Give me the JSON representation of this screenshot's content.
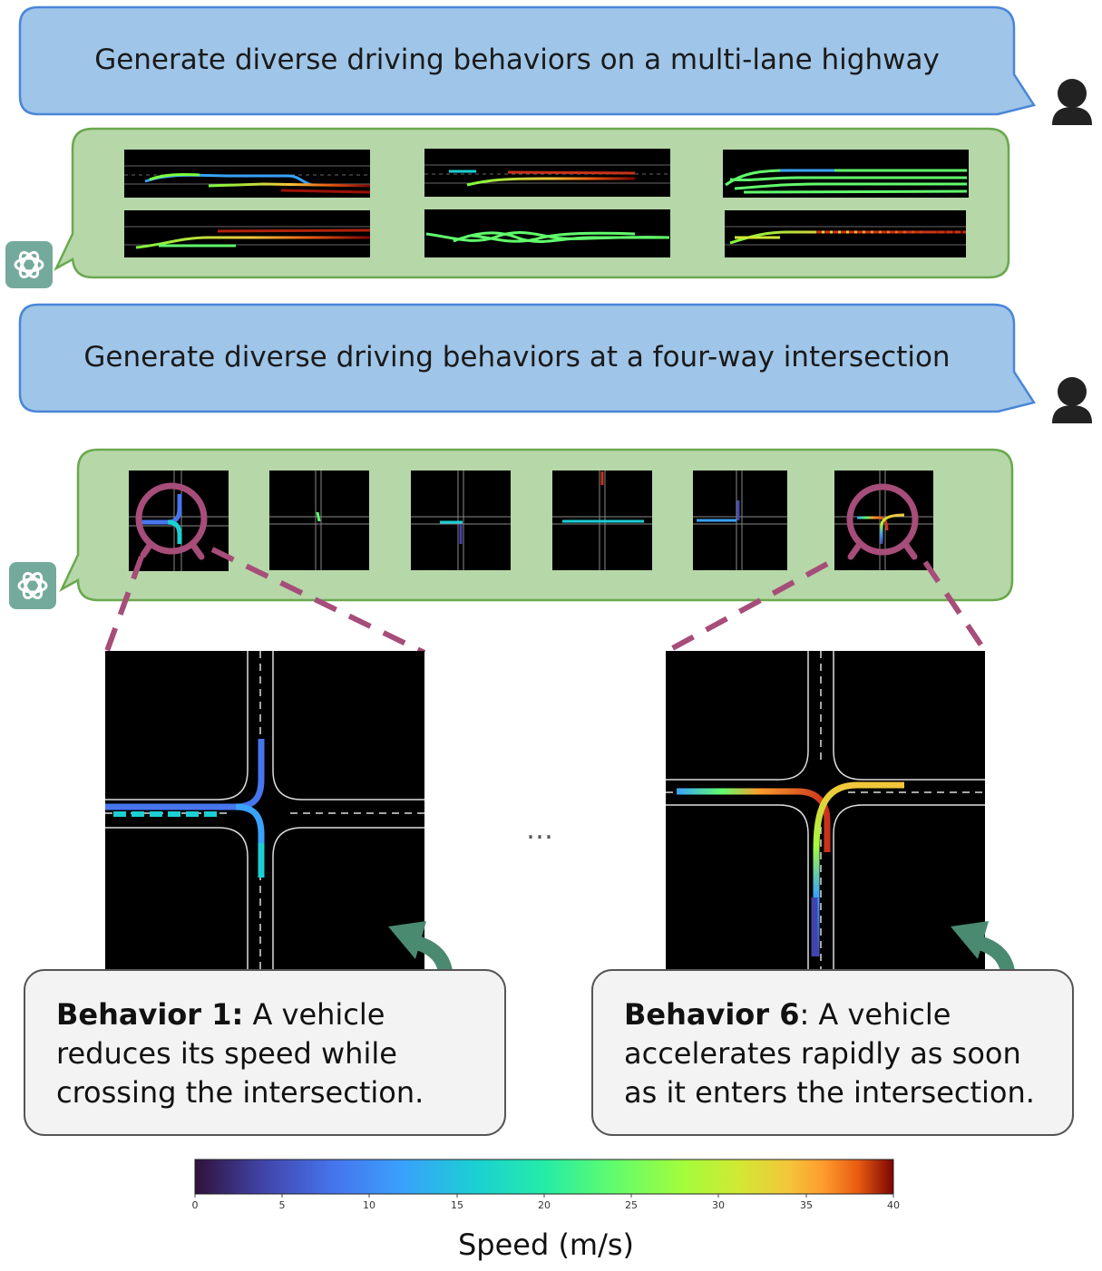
{
  "prompts": [
    "Generate diverse driving behaviors on a multi-lane highway",
    "Generate diverse driving behaviors at a four-way intersection"
  ],
  "ellipsis": "…",
  "cards": [
    {
      "bold": "Behavior 1:",
      "text": " A vehicle reduces its speed while crossing the intersection."
    },
    {
      "bold": "Behavior 6",
      "text": ": A vehicle accelerates rapidly as soon as it enters the intersection."
    }
  ],
  "colorbar": {
    "label": "Speed (m/s)",
    "ticks": [
      "0",
      "5",
      "10",
      "15",
      "20",
      "25",
      "30",
      "35",
      "40"
    ],
    "min": 0,
    "max": 40,
    "colormap": "turbo"
  },
  "colors": {
    "prompt_bubble": "#9fc5e8",
    "prompt_border": "#4a86d8",
    "response_bubble": "#b6d7a8",
    "response_border": "#6aa84f",
    "magnifier": "#a64d79",
    "arrow": "#4a8a70",
    "card_bg": "#f3f3f3",
    "ai_icon": "#74aa9c"
  },
  "icons": [
    "user-icon",
    "chatgpt-icon",
    "magnifier-icon",
    "curved-arrow-icon"
  ]
}
